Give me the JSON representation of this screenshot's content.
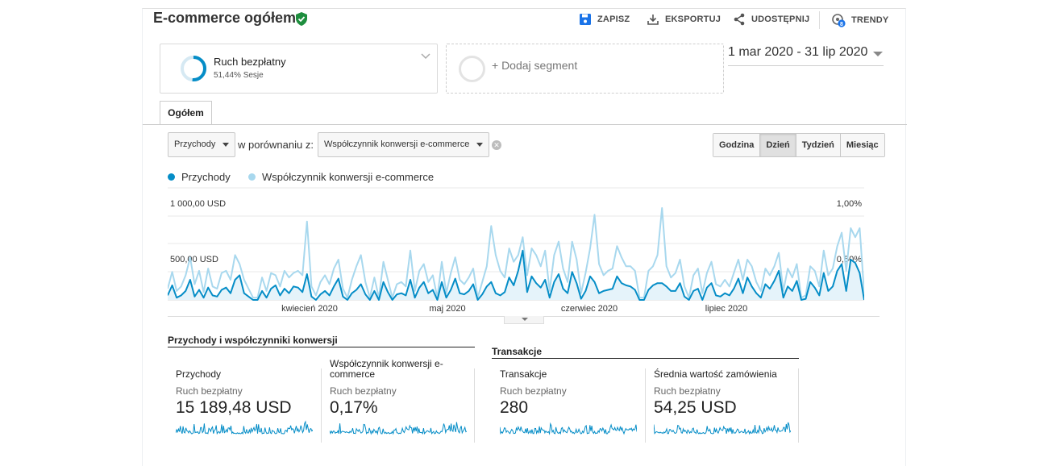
{
  "header": {
    "title": "E-commerce ogółem",
    "actions": {
      "save": "ZAPISZ",
      "export": "EKSPORTUJ",
      "share": "UDOSTĘPNIJ",
      "trends": "TRENDY",
      "trends_badge": "8"
    }
  },
  "segments": [
    {
      "name": "Ruch bezpłatny",
      "sub": "51,44% Sesje",
      "percent": 51.44,
      "color": "#058dc7"
    },
    {
      "name": "+ Dodaj segment"
    }
  ],
  "date_range": "1 mar 2020 - 31 lip 2020",
  "tabs": [
    {
      "label": "Ogółem",
      "active": true
    }
  ],
  "controls": {
    "metric1": "Przychody",
    "compare_label": "w porównaniu z:",
    "metric2": "Współczynnik konwersji e-commerce",
    "clear_icon": "✕",
    "granularity": [
      "Godzina",
      "Dzień",
      "Tydzień",
      "Miesiąc"
    ],
    "granularity_active": "Dzień"
  },
  "colors": {
    "series1": "#058dc7",
    "series2": "#a8d8ee",
    "fill": "#e5f3fa"
  },
  "chart_data": {
    "type": "line",
    "x_range": [
      "2020-03-01",
      "2020-07-31"
    ],
    "x_tick_labels": [
      "kwiecień 2020",
      "maj 2020",
      "czerwiec 2020",
      "lipiec 2020"
    ],
    "y_left": {
      "ticks": [
        "1 000,00 USD",
        "500,00 USD"
      ],
      "max": 1000
    },
    "y_right": {
      "ticks": [
        "1,00%",
        "0,50%"
      ],
      "max": 1.0
    },
    "grid": true,
    "legend": "top-left",
    "series": [
      {
        "name": "Przychody",
        "axis": "left",
        "values": [
          40,
          130,
          20,
          40,
          80,
          180,
          30,
          90,
          20,
          110,
          40,
          30,
          90,
          110,
          60,
          180,
          220,
          60,
          30,
          0,
          0,
          80,
          20,
          100,
          130,
          40,
          100,
          60,
          120,
          110,
          70,
          230,
          30,
          0,
          50,
          80,
          40,
          120,
          190,
          30,
          0,
          60,
          90,
          140,
          50,
          0,
          80,
          0,
          160,
          70,
          0,
          50,
          60,
          40,
          180,
          20,
          110,
          160,
          60,
          90,
          0,
          160,
          20,
          90,
          190,
          60,
          50,
          80,
          140,
          0,
          50,
          120,
          160,
          60,
          40,
          70,
          200,
          130,
          260,
          440,
          70,
          210,
          150,
          110,
          180,
          20,
          160,
          230,
          100,
          60,
          250,
          150,
          10,
          80,
          210,
          160,
          60,
          80,
          90,
          100,
          210,
          150,
          130,
          120,
          90,
          0,
          0,
          90,
          130,
          150,
          150,
          120,
          80,
          80,
          150,
          30,
          0,
          80,
          100,
          0,
          110,
          150,
          40,
          30,
          60,
          40,
          100,
          190,
          60,
          200,
          120,
          60,
          20,
          140,
          100,
          170,
          260,
          20,
          120,
          80,
          170,
          0,
          10,
          160,
          110,
          40,
          240,
          80,
          120,
          260,
          320,
          80,
          360,
          330,
          240,
          0
        ]
      },
      {
        "name": "Współczynnik konwersji e-commerce",
        "axis": "right",
        "values": [
          0.1,
          0.25,
          0.08,
          0.12,
          0.22,
          0.38,
          0.14,
          0.26,
          0.07,
          0.28,
          0.12,
          0.1,
          0.24,
          0.26,
          0.18,
          0.4,
          0.32,
          0.18,
          0.1,
          0.02,
          0.02,
          0.2,
          0.08,
          0.24,
          0.22,
          0.12,
          0.26,
          0.2,
          0.24,
          0.26,
          0.22,
          0.7,
          0.12,
          0.04,
          0.16,
          0.22,
          0.14,
          0.28,
          0.36,
          0.1,
          0.02,
          0.18,
          0.3,
          0.4,
          0.16,
          0.02,
          0.2,
          0.02,
          0.34,
          0.18,
          0.02,
          0.14,
          0.16,
          0.12,
          0.44,
          0.08,
          0.26,
          0.32,
          0.16,
          0.22,
          0.02,
          0.34,
          0.06,
          0.24,
          0.38,
          0.18,
          0.14,
          0.2,
          0.28,
          0.02,
          0.16,
          0.3,
          0.66,
          0.4,
          0.26,
          0.2,
          0.46,
          0.34,
          0.4,
          0.56,
          0.22,
          0.46,
          0.4,
          0.3,
          0.44,
          0.08,
          0.4,
          0.52,
          0.28,
          0.16,
          0.52,
          0.36,
          0.06,
          0.24,
          0.46,
          0.76,
          0.32,
          0.22,
          0.26,
          0.28,
          0.48,
          0.38,
          0.3,
          0.3,
          0.26,
          0.02,
          0.02,
          0.26,
          0.3,
          0.4,
          0.82,
          0.3,
          0.2,
          0.24,
          0.36,
          0.12,
          0.02,
          0.22,
          0.28,
          0.06,
          0.24,
          0.34,
          0.14,
          0.12,
          0.18,
          0.12,
          0.24,
          0.36,
          0.18,
          0.36,
          0.3,
          0.16,
          0.08,
          0.28,
          0.22,
          0.3,
          0.42,
          0.08,
          0.28,
          0.2,
          0.32,
          0.02,
          0.04,
          0.3,
          0.26,
          0.12,
          0.44,
          0.22,
          0.28,
          0.48,
          0.6,
          0.26,
          0.64,
          0.56,
          0.64,
          0.06
        ]
      }
    ]
  },
  "scorecards": {
    "group1_title": "Przychody i współczynniki konwersji",
    "group2_title": "Transakcje",
    "items": [
      {
        "name": "Przychody",
        "segment": "Ruch bezpłatny",
        "value": "15 189,48 USD"
      },
      {
        "name": "Współczynnik konwersji e-commerce",
        "segment": "Ruch bezpłatny",
        "value": "0,17%"
      },
      {
        "name": "Transakcje",
        "segment": "Ruch bezpłatny",
        "value": "280"
      },
      {
        "name": "Średnia wartość zamówienia",
        "segment": "Ruch bezpłatny",
        "value": "54,25 USD"
      }
    ]
  }
}
